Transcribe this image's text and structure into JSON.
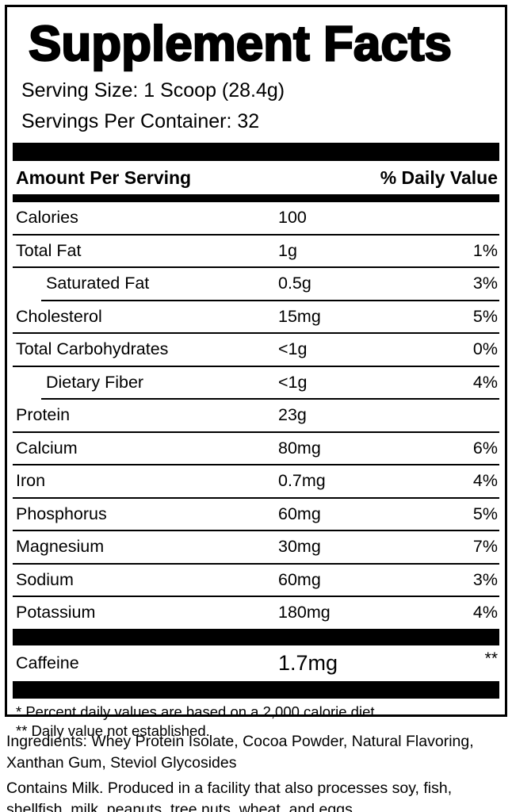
{
  "label": {
    "title": "Supplement Facts",
    "serving_size": "Serving Size: 1 Scoop (28.4g)",
    "servings_per_container": "Servings Per Container: 32",
    "header": {
      "amount_per_serving": "Amount Per Serving",
      "daily_value": "% Daily Value"
    },
    "rows": [
      {
        "name": "Calories",
        "amount": "100",
        "dv": ""
      },
      {
        "name": "Total Fat",
        "amount": "1g",
        "dv": "1%"
      },
      {
        "name": "Saturated Fat",
        "amount": "0.5g",
        "dv": "3%"
      },
      {
        "name": "Cholesterol",
        "amount": "15mg",
        "dv": "5%"
      },
      {
        "name": "Total Carbohydrates",
        "amount": "<1g",
        "dv": "0%"
      },
      {
        "name": "Dietary Fiber",
        "amount": "<1g",
        "dv": "4%"
      },
      {
        "name": "Protein",
        "amount": "23g",
        "dv": ""
      },
      {
        "name": "Calcium",
        "amount": "80mg",
        "dv": "6%"
      },
      {
        "name": "Iron",
        "amount": "0.7mg",
        "dv": "4%"
      },
      {
        "name": "Phosphorus",
        "amount": "60mg",
        "dv": "5%"
      },
      {
        "name": "Magnesium",
        "amount": "30mg",
        "dv": "7%"
      },
      {
        "name": "Sodium",
        "amount": "60mg",
        "dv": "3%"
      },
      {
        "name": "Potassium",
        "amount": "180mg",
        "dv": "4%"
      }
    ],
    "caffeine": {
      "name": "Caffeine",
      "amount": "1.7mg",
      "dv": "**"
    },
    "footnotes": {
      "line1": "* Percent daily values are based on a 2,000 calorie diet.",
      "line2": "** Daily value not established."
    },
    "colors": {
      "ink": "#000000",
      "paper": "#ffffff"
    }
  },
  "below": {
    "ingredients": "Ingredients: Whey Protein Isolate, Cocoa Powder, Natural Flavoring, Xanthan Gum, Steviol Glycosides",
    "allergens": "Contains Milk. Produced in a facility that also processes soy, fish, shellfish, milk, peanuts, tree nuts, wheat, and eggs."
  }
}
